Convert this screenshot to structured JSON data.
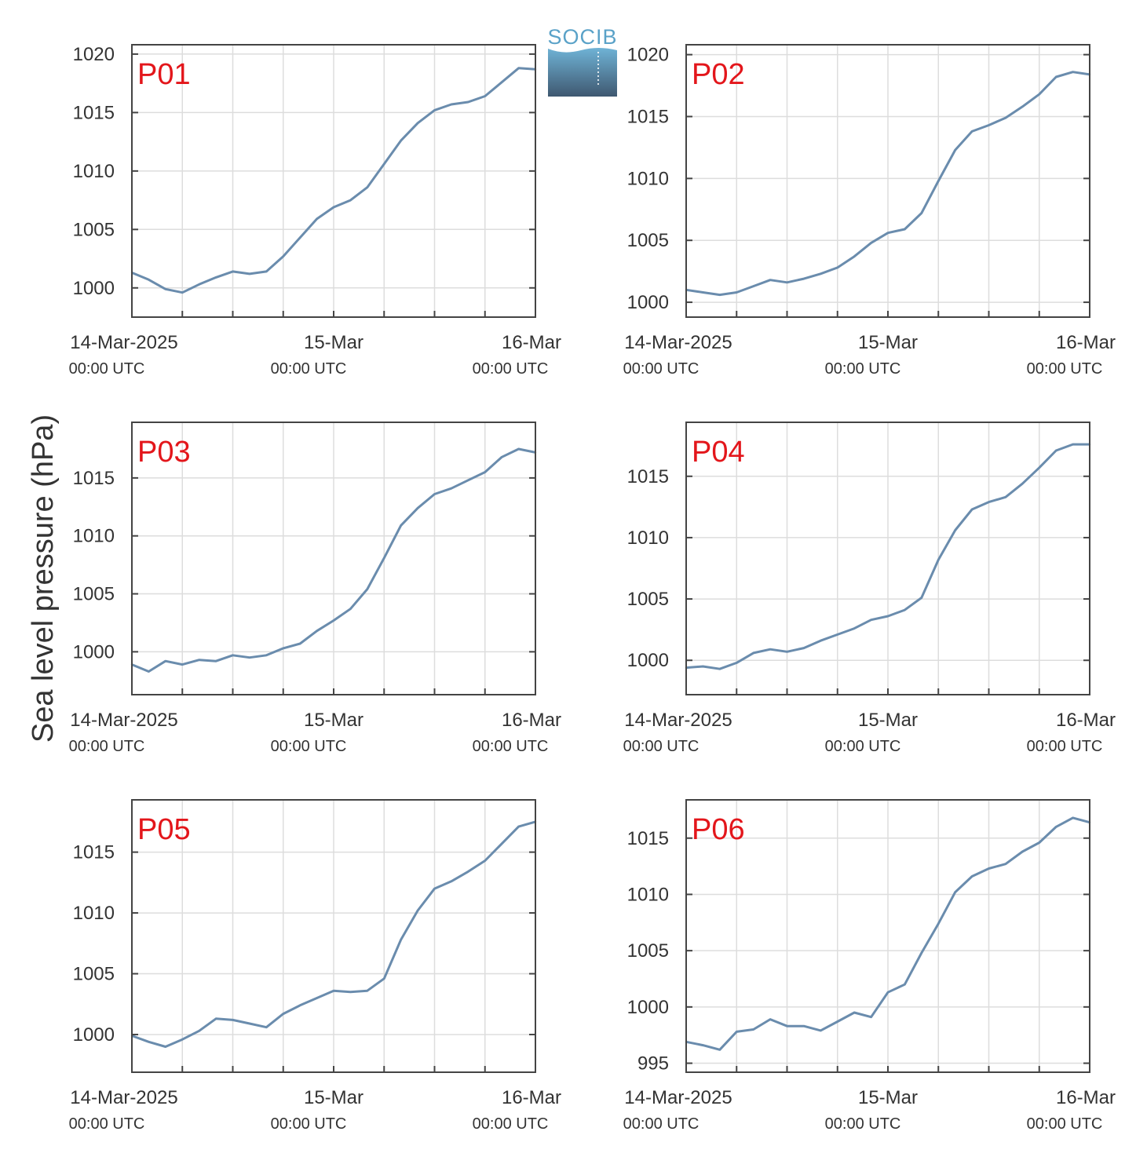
{
  "colors": {
    "line": "#6a8cad",
    "label": "#e3161b",
    "grid": "#dddddd",
    "frame": "#444444",
    "text": "#333333",
    "logo_top": "#6fb3d6",
    "logo_bottom": "#3f5870"
  },
  "logo": {
    "text": "SOCIB",
    "icon": "socib-logo"
  },
  "ylabel": "Sea level pressure (hPa)",
  "chart_data": [
    {
      "type": "line",
      "label": "P01",
      "ylim": [
        997.5,
        1020.8
      ],
      "yticks": [
        1000,
        1005,
        1010,
        1015,
        1020
      ],
      "x_major_ticks": [
        0,
        24,
        48
      ],
      "x_minor_ticks": [
        6,
        12,
        18,
        30,
        36,
        42
      ],
      "x_tick_labels": [
        "14-Mar-2025",
        "15-Mar",
        "16-Mar"
      ],
      "x_tick_sublabels": [
        "00:00 UTC",
        "00:00 UTC",
        "00:00 UTC"
      ],
      "grid": true,
      "xlim": [
        0,
        48
      ],
      "x": [
        0,
        2,
        4,
        6,
        8,
        10,
        12,
        14,
        16,
        18,
        20,
        22,
        24,
        26,
        28,
        30,
        32,
        34,
        36,
        38,
        40,
        42,
        44,
        46,
        48
      ],
      "values": [
        1001.3,
        1000.7,
        999.9,
        999.6,
        1000.3,
        1000.9,
        1001.4,
        1001.2,
        1001.4,
        1002.7,
        1004.3,
        1005.9,
        1006.9,
        1007.5,
        1008.6,
        1010.6,
        1012.6,
        1014.1,
        1015.2,
        1015.7,
        1015.9,
        1016.4,
        1017.6,
        1018.8,
        1018.7
      ]
    },
    {
      "type": "line",
      "label": "P02",
      "ylim": [
        998.8,
        1020.8
      ],
      "yticks": [
        1000,
        1005,
        1010,
        1015,
        1020
      ],
      "x_major_ticks": [
        0,
        24,
        48
      ],
      "x_minor_ticks": [
        6,
        12,
        18,
        30,
        36,
        42
      ],
      "x_tick_labels": [
        "14-Mar-2025",
        "15-Mar",
        "16-Mar"
      ],
      "x_tick_sublabels": [
        "00:00 UTC",
        "00:00 UTC",
        "00:00 UTC"
      ],
      "grid": true,
      "xlim": [
        0,
        48
      ],
      "x": [
        0,
        2,
        4,
        6,
        8,
        10,
        12,
        14,
        16,
        18,
        20,
        22,
        24,
        26,
        28,
        30,
        32,
        34,
        36,
        38,
        40,
        42,
        44,
        46,
        48
      ],
      "values": [
        1001.0,
        1000.8,
        1000.6,
        1000.8,
        1001.3,
        1001.8,
        1001.6,
        1001.9,
        1002.3,
        1002.8,
        1003.7,
        1004.8,
        1005.6,
        1005.9,
        1007.2,
        1009.8,
        1012.3,
        1013.8,
        1014.3,
        1014.9,
        1015.8,
        1016.8,
        1018.2,
        1018.6,
        1018.4
      ]
    },
    {
      "type": "line",
      "label": "P03",
      "ylim": [
        996.3,
        1019.8
      ],
      "yticks": [
        1000,
        1005,
        1010,
        1015
      ],
      "x_major_ticks": [
        0,
        24,
        48
      ],
      "x_minor_ticks": [
        6,
        12,
        18,
        30,
        36,
        42
      ],
      "x_tick_labels": [
        "14-Mar-2025",
        "15-Mar",
        "16-Mar"
      ],
      "x_tick_sublabels": [
        "00:00 UTC",
        "00:00 UTC",
        "00:00 UTC"
      ],
      "grid": true,
      "xlim": [
        0,
        48
      ],
      "x": [
        0,
        2,
        4,
        6,
        8,
        10,
        12,
        14,
        16,
        18,
        20,
        22,
        24,
        26,
        28,
        30,
        32,
        34,
        36,
        38,
        40,
        42,
        44,
        46,
        48
      ],
      "values": [
        998.9,
        998.3,
        999.2,
        998.9,
        999.3,
        999.2,
        999.7,
        999.5,
        999.7,
        1000.3,
        1000.7,
        1001.8,
        1002.7,
        1003.7,
        1005.4,
        1008.1,
        1010.9,
        1012.4,
        1013.6,
        1014.1,
        1014.8,
        1015.5,
        1016.8,
        1017.5,
        1017.2
      ]
    },
    {
      "type": "line",
      "label": "P04",
      "ylim": [
        997.2,
        1019.4
      ],
      "yticks": [
        1000,
        1005,
        1010,
        1015
      ],
      "x_major_ticks": [
        0,
        24,
        48
      ],
      "x_minor_ticks": [
        6,
        12,
        18,
        30,
        36,
        42
      ],
      "x_tick_labels": [
        "14-Mar-2025",
        "15-Mar",
        "16-Mar"
      ],
      "x_tick_sublabels": [
        "00:00 UTC",
        "00:00 UTC",
        "00:00 UTC"
      ],
      "grid": true,
      "xlim": [
        0,
        48
      ],
      "x": [
        0,
        2,
        4,
        6,
        8,
        10,
        12,
        14,
        16,
        18,
        20,
        22,
        24,
        26,
        28,
        30,
        32,
        34,
        36,
        38,
        40,
        42,
        44,
        46,
        48
      ],
      "values": [
        999.4,
        999.5,
        999.3,
        999.8,
        1000.6,
        1000.9,
        1000.7,
        1001.0,
        1001.6,
        1002.1,
        1002.6,
        1003.3,
        1003.6,
        1004.1,
        1005.1,
        1008.2,
        1010.6,
        1012.3,
        1012.9,
        1013.3,
        1014.4,
        1015.7,
        1017.1,
        1017.6,
        1017.6
      ]
    },
    {
      "type": "line",
      "label": "P05",
      "ylim": [
        996.9,
        1019.3
      ],
      "yticks": [
        1000,
        1005,
        1010,
        1015
      ],
      "x_major_ticks": [
        0,
        24,
        48
      ],
      "x_minor_ticks": [
        6,
        12,
        18,
        30,
        36,
        42
      ],
      "x_tick_labels": [
        "14-Mar-2025",
        "15-Mar",
        "16-Mar"
      ],
      "x_tick_sublabels": [
        "00:00 UTC",
        "00:00 UTC",
        "00:00 UTC"
      ],
      "grid": true,
      "xlim": [
        0,
        48
      ],
      "x": [
        0,
        2,
        4,
        6,
        8,
        10,
        12,
        14,
        16,
        18,
        20,
        22,
        24,
        26,
        28,
        30,
        32,
        34,
        36,
        38,
        40,
        42,
        44,
        46,
        48
      ],
      "values": [
        999.9,
        999.4,
        999.0,
        999.6,
        1000.3,
        1001.3,
        1001.2,
        1000.9,
        1000.6,
        1001.7,
        1002.4,
        1003.0,
        1003.6,
        1003.5,
        1003.6,
        1004.6,
        1007.8,
        1010.2,
        1012.0,
        1012.6,
        1013.4,
        1014.3,
        1015.7,
        1017.1,
        1017.5
      ]
    },
    {
      "type": "line",
      "label": "P06",
      "ylim": [
        994.2,
        1018.4
      ],
      "yticks": [
        995,
        1000,
        1005,
        1010,
        1015
      ],
      "x_major_ticks": [
        0,
        24,
        48
      ],
      "x_minor_ticks": [
        6,
        12,
        18,
        30,
        36,
        42
      ],
      "x_tick_labels": [
        "14-Mar-2025",
        "15-Mar",
        "16-Mar"
      ],
      "x_tick_sublabels": [
        "00:00 UTC",
        "00:00 UTC",
        "00:00 UTC"
      ],
      "grid": true,
      "xlim": [
        0,
        48
      ],
      "x": [
        0,
        2,
        4,
        6,
        8,
        10,
        12,
        14,
        16,
        18,
        20,
        22,
        24,
        26,
        28,
        30,
        32,
        34,
        36,
        38,
        40,
        42,
        44,
        46,
        48
      ],
      "values": [
        996.9,
        996.6,
        996.2,
        997.8,
        998.0,
        998.9,
        998.3,
        998.3,
        997.9,
        998.7,
        999.5,
        999.1,
        1001.3,
        1002.0,
        1004.8,
        1007.4,
        1010.2,
        1011.6,
        1012.3,
        1012.7,
        1013.8,
        1014.6,
        1016.0,
        1016.8,
        1016.4
      ]
    }
  ]
}
